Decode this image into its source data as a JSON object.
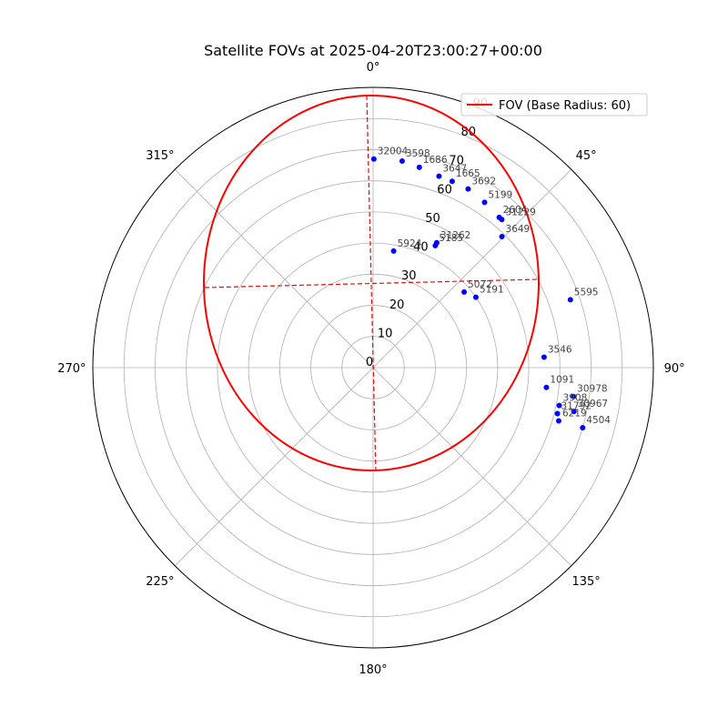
{
  "chart_data": {
    "type": "scatter",
    "projection": "polar",
    "title": "Satellite FOVs at 2025-04-20T23:00:27+00:00",
    "theta_zero": "N",
    "theta_direction": "clockwise",
    "theta_ticks": [
      "0°",
      "45°",
      "90°",
      "135°",
      "180°",
      "225°",
      "270°",
      "315°"
    ],
    "r_ticks": [
      0,
      10,
      20,
      30,
      40,
      50,
      60,
      70,
      80,
      90
    ],
    "rlim": [
      0,
      90
    ],
    "grid": true,
    "legend": {
      "position": "top-right",
      "entries": [
        "FOV (Base Radius: 60)"
      ]
    },
    "fov": {
      "name": "FOV (Base Radius: 60)",
      "color": "#ff0000"
    },
    "points_color": "#0000ff",
    "satellites": [
      {
        "id": "32004",
        "az": 0.2,
        "r": 67
      },
      {
        "id": "3598",
        "az": 8,
        "r": 67
      },
      {
        "id": "1686",
        "az": 13,
        "r": 66
      },
      {
        "id": "3647",
        "az": 19,
        "r": 65
      },
      {
        "id": "1665",
        "az": 23,
        "r": 65
      },
      {
        "id": "3692",
        "az": 28,
        "r": 65
      },
      {
        "id": "5199",
        "az": 34,
        "r": 64
      },
      {
        "id": "2604",
        "az": 40,
        "r": 63
      },
      {
        "id": "31229",
        "az": 41,
        "r": 63
      },
      {
        "id": "3649",
        "az": 44.5,
        "r": 59
      },
      {
        "id": "5924",
        "az": 10,
        "r": 38
      },
      {
        "id": "31262",
        "az": 27,
        "r": 45
      },
      {
        "id": "5185",
        "az": 27,
        "r": 44
      },
      {
        "id": "5191",
        "az": 55.6,
        "r": 40
      },
      {
        "id": "5072",
        "az": 50.3,
        "r": 38
      },
      {
        "id": "5595",
        "az": 71,
        "r": 67
      },
      {
        "id": "3546",
        "az": 86.5,
        "r": 55
      },
      {
        "id": "1091",
        "az": 96.5,
        "r": 56
      },
      {
        "id": "30978",
        "az": 98.2,
        "r": 65
      },
      {
        "id": "3908",
        "az": 101.5,
        "r": 61
      },
      {
        "id": "30967",
        "az": 102.3,
        "r": 66
      },
      {
        "id": "31792",
        "az": 104,
        "r": 61
      },
      {
        "id": "6219",
        "az": 106,
        "r": 62
      },
      {
        "id": "4504",
        "az": 106,
        "r": 70
      }
    ]
  }
}
